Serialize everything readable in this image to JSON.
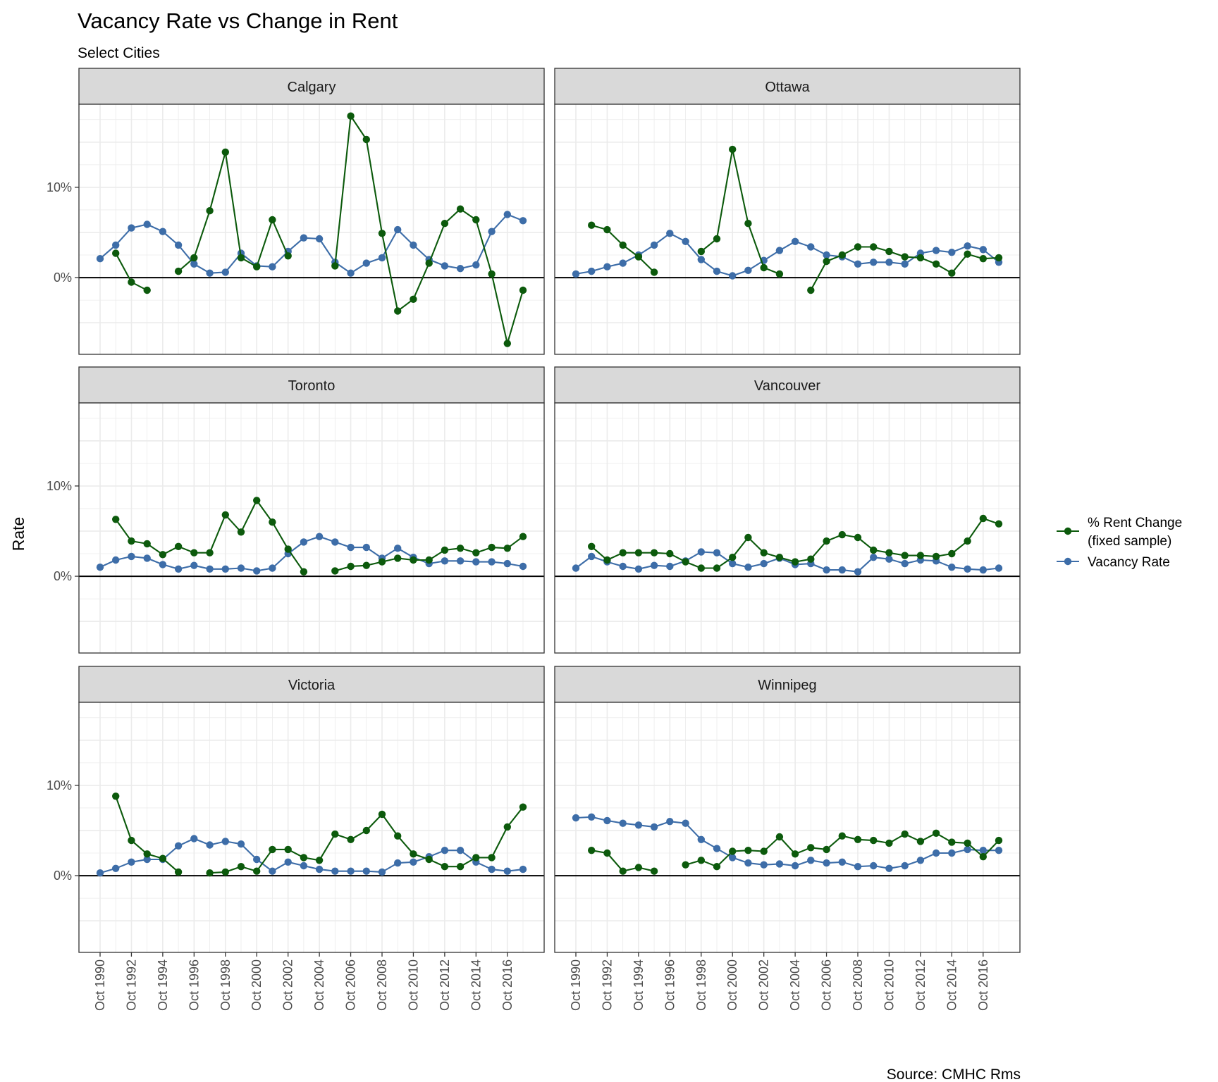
{
  "chart_data": {
    "type": "line",
    "title": "Vacancy Rate vs Change in Rent",
    "subtitle": "Select Cities",
    "ylabel": "Rate",
    "caption": "Source: CMHC Rms",
    "ylim": [
      -8.5,
      19.2
    ],
    "y_ticks": [
      0,
      10
    ],
    "y_tick_labels": [
      "0%",
      "10%"
    ],
    "x_years": [
      1990,
      1991,
      1992,
      1993,
      1994,
      1995,
      1996,
      1997,
      1998,
      1999,
      2000,
      2001,
      2002,
      2003,
      2004,
      2005,
      2006,
      2007,
      2008,
      2009,
      2010,
      2011,
      2012,
      2013,
      2014,
      2015,
      2016,
      2017
    ],
    "x_tick_labels": [
      "Oct 1990",
      "Oct 1992",
      "Oct 1994",
      "Oct 1996",
      "Oct 1998",
      "Oct 2000",
      "Oct 2002",
      "Oct 2004",
      "Oct 2006",
      "Oct 2008",
      "Oct 2010",
      "Oct 2012",
      "Oct 2014",
      "Oct 2016"
    ],
    "legend": {
      "position": "right",
      "entries": [
        {
          "label_lines": [
            "% Rent Change",
            "(fixed sample)"
          ],
          "color": "#0c5a0c"
        },
        {
          "label_lines": [
            "Vacancy Rate"
          ],
          "color": "#3d6da8"
        }
      ]
    },
    "colors": {
      "rent": "#0c5a0c",
      "vacancy": "#3d6da8"
    },
    "panels": [
      {
        "city": "Calgary",
        "rent": [
          null,
          2.7,
          -0.5,
          -1.4,
          null,
          0.7,
          2.2,
          7.4,
          13.9,
          2.2,
          1.2,
          6.4,
          2.4,
          null,
          null,
          1.3,
          17.9,
          15.3,
          4.9,
          -3.7,
          -2.4,
          1.6,
          6.0,
          7.6,
          6.4,
          0.4,
          -7.3,
          -1.4
        ],
        "vacancy": [
          2.1,
          3.6,
          5.5,
          5.9,
          5.1,
          3.6,
          1.5,
          0.5,
          0.6,
          2.7,
          1.3,
          1.2,
          2.9,
          4.4,
          4.3,
          1.7,
          0.5,
          1.6,
          2.2,
          5.3,
          3.6,
          2.0,
          1.3,
          1.0,
          1.4,
          5.1,
          7.0,
          6.3
        ]
      },
      {
        "city": "Ottawa",
        "rent": [
          null,
          5.8,
          5.3,
          3.6,
          2.3,
          0.6,
          null,
          null,
          2.9,
          4.3,
          14.2,
          6.0,
          1.1,
          0.4,
          null,
          -1.4,
          1.8,
          2.5,
          3.4,
          3.4,
          2.9,
          2.3,
          2.2,
          1.5,
          0.5,
          2.6,
          2.1,
          2.2
        ],
        "vacancy": [
          0.4,
          0.7,
          1.2,
          1.6,
          2.5,
          3.6,
          4.9,
          4.0,
          2.0,
          0.7,
          0.2,
          0.8,
          1.9,
          3.0,
          4.0,
          3.4,
          2.5,
          2.3,
          1.5,
          1.7,
          1.7,
          1.5,
          2.7,
          3.0,
          2.8,
          3.5,
          3.1,
          1.7
        ]
      },
      {
        "city": "Toronto",
        "rent": [
          null,
          6.3,
          3.9,
          3.6,
          2.4,
          3.3,
          2.6,
          2.6,
          6.8,
          4.9,
          8.4,
          6.0,
          3.0,
          0.5,
          null,
          0.6,
          1.1,
          1.2,
          1.6,
          2.0,
          1.8,
          1.8,
          2.9,
          3.1,
          2.6,
          3.2,
          3.1,
          4.4
        ],
        "vacancy": [
          1.0,
          1.8,
          2.2,
          2.0,
          1.3,
          0.8,
          1.2,
          0.8,
          0.8,
          0.9,
          0.6,
          0.9,
          2.5,
          3.8,
          4.4,
          3.8,
          3.2,
          3.2,
          2.0,
          3.1,
          2.1,
          1.4,
          1.7,
          1.7,
          1.6,
          1.6,
          1.4,
          1.1
        ]
      },
      {
        "city": "Vancouver",
        "rent": [
          null,
          3.3,
          1.8,
          2.6,
          2.6,
          2.6,
          2.5,
          1.6,
          0.9,
          0.9,
          2.1,
          4.3,
          2.6,
          2.1,
          1.6,
          1.9,
          3.9,
          4.6,
          4.3,
          2.9,
          2.6,
          2.3,
          2.3,
          2.2,
          2.5,
          3.9,
          6.4,
          5.8
        ],
        "vacancy": [
          0.9,
          2.2,
          1.6,
          1.1,
          0.8,
          1.2,
          1.1,
          1.7,
          2.7,
          2.6,
          1.4,
          1.0,
          1.4,
          2.0,
          1.3,
          1.4,
          0.7,
          0.7,
          0.5,
          2.1,
          1.9,
          1.4,
          1.8,
          1.7,
          1.0,
          0.8,
          0.7,
          0.9
        ]
      },
      {
        "city": "Victoria",
        "rent": [
          null,
          8.8,
          3.9,
          2.4,
          1.9,
          0.4,
          null,
          0.3,
          0.4,
          1.0,
          0.5,
          2.9,
          2.9,
          2.0,
          1.7,
          4.6,
          4.0,
          5.0,
          6.8,
          4.4,
          2.4,
          1.8,
          1.0,
          1.0,
          2.0,
          2.0,
          5.4,
          7.6
        ],
        "vacancy": [
          0.3,
          0.8,
          1.5,
          1.8,
          1.8,
          3.3,
          4.1,
          3.4,
          3.8,
          3.5,
          1.8,
          0.5,
          1.5,
          1.1,
          0.7,
          0.5,
          0.5,
          0.5,
          0.4,
          1.4,
          1.5,
          2.1,
          2.8,
          2.8,
          1.5,
          0.7,
          0.5,
          0.7
        ]
      },
      {
        "city": "Winnipeg",
        "rent": [
          null,
          2.8,
          2.5,
          0.5,
          0.9,
          0.5,
          null,
          1.2,
          1.7,
          1.0,
          2.7,
          2.8,
          2.7,
          4.3,
          2.4,
          3.1,
          2.9,
          4.4,
          4.0,
          3.9,
          3.6,
          4.6,
          3.8,
          4.7,
          3.7,
          3.6,
          2.1,
          3.9
        ],
        "vacancy": [
          6.4,
          6.5,
          6.1,
          5.8,
          5.6,
          5.4,
          6.0,
          5.8,
          4.0,
          3.0,
          2.0,
          1.4,
          1.2,
          1.3,
          1.1,
          1.7,
          1.4,
          1.5,
          1.0,
          1.1,
          0.8,
          1.1,
          1.7,
          2.5,
          2.5,
          2.9,
          2.8,
          2.8
        ]
      }
    ]
  }
}
